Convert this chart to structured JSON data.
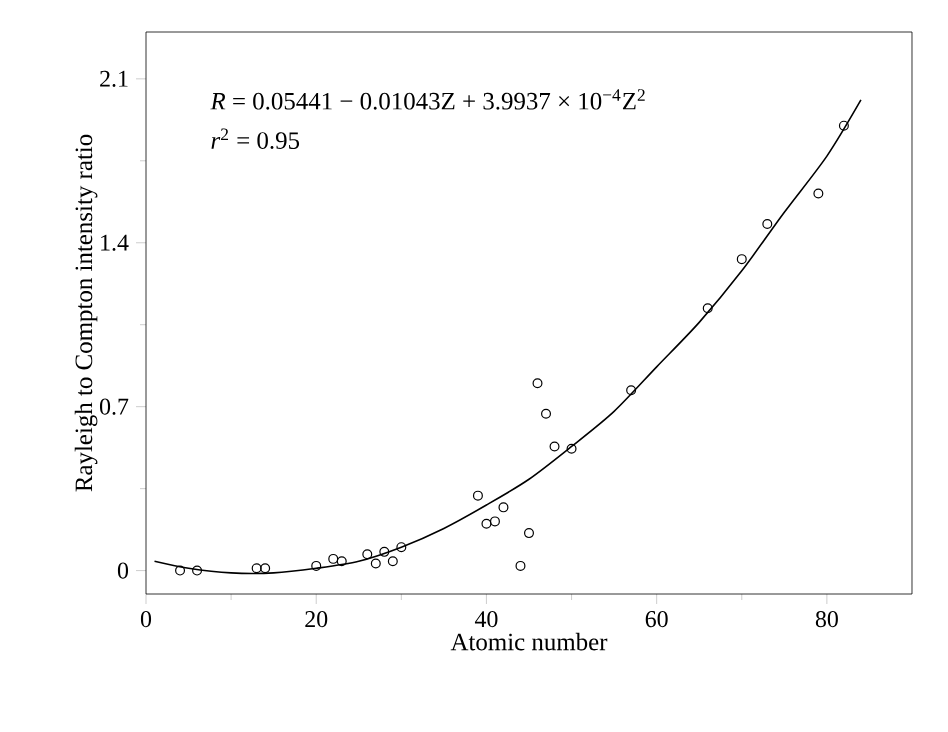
{
  "chart_data": {
    "type": "scatter",
    "xlabel": "Atomic number",
    "ylabel": "Rayleigh to Compton intensity ratio",
    "annotations": [
      "*R* = 0.05441 − 0.01043Z + 3.9937 × 10$^{−4}$Z$^{2}$",
      "*r*$^{2}$ = 0.95"
    ],
    "xlim": [
      0,
      90
    ],
    "ylim": [
      -0.1,
      2.3
    ],
    "xticks": [
      0,
      20,
      40,
      60,
      80
    ],
    "yticks": [
      0,
      0.7,
      1.4,
      2.1
    ],
    "grid": false,
    "series": [
      {
        "marker": "circle",
        "color": "#000000",
        "x": [
          4,
          6,
          13,
          14,
          20,
          22,
          23,
          26,
          27,
          28,
          29,
          30,
          39,
          40,
          41,
          42,
          44,
          45,
          46,
          47,
          48,
          50,
          57,
          66,
          70,
          73,
          79,
          82
        ],
        "values": [
          0,
          0,
          0.01,
          0.01,
          0.02,
          0.05,
          0.04,
          0.07,
          0.03,
          0.08,
          0.04,
          0.1,
          0.32,
          0.2,
          0.21,
          0.27,
          0.02,
          0.16,
          0.8,
          0.67,
          0.53,
          0.52,
          0.77,
          1.12,
          1.33,
          1.48,
          1.61,
          1.9
        ]
      },
      {
        "type": "line",
        "marker": "none",
        "line_style": "solid",
        "color": "#000000",
        "x": [
          1,
          5,
          10,
          15,
          20,
          25,
          30,
          35,
          40,
          45,
          50,
          55,
          60,
          65,
          70,
          75,
          80,
          84
        ],
        "values": [
          0.04,
          0.01,
          -0.01,
          -0.01,
          0.01,
          0.04,
          0.1,
          0.18,
          0.28,
          0.39,
          0.53,
          0.68,
          0.87,
          1.06,
          1.28,
          1.53,
          1.77,
          2.01
        ]
      }
    ]
  }
}
